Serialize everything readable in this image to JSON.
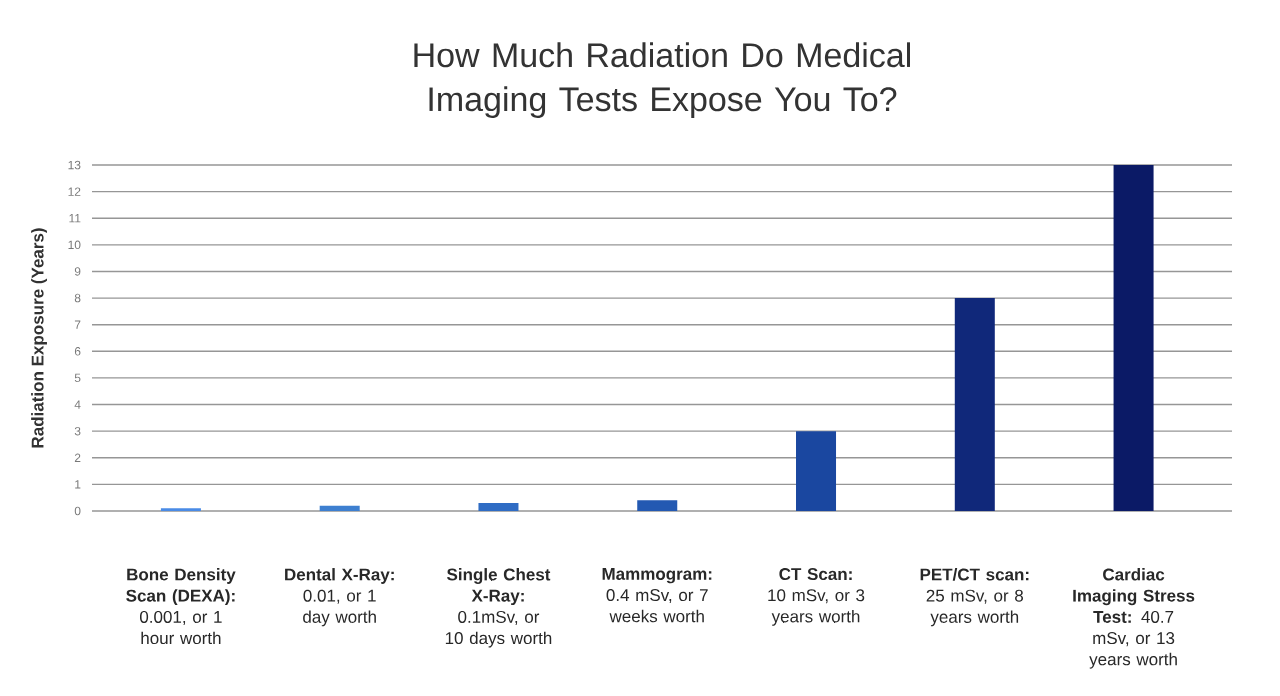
{
  "chart_data": {
    "type": "bar",
    "title": "How Much Radiation Do Medical Imaging Tests Expose You To?",
    "ylabel": "Radiation Exposure (Years)",
    "categories": [
      "**Bone Density Scan (DEXA):** 0.001, or 1 hour worth",
      "**Dental X-Ray:** 0.01, or 1 day worth",
      "**Single Chest X-Ray:** 0.1mSv, or 10 days worth",
      "**Mammogram:** 0.4 mSv, or 7 weeks worth",
      "**CT Scan:** 10 mSv, or 3 years worth",
      "**PET/CT scan:** 25 mSv, or 8 years worth",
      "**Cardiac Imaging Stress Test:** 40.7 mSv, or 13 years worth"
    ],
    "values": [
      0.1,
      0.2,
      0.3,
      0.4,
      3,
      8,
      13
    ],
    "colors": [
      "#4a8be6",
      "#3d7fd0",
      "#2f6cc4",
      "#2359b2",
      "#1a47a0",
      "#10287a",
      "#0b1a66"
    ],
    "ylim": [
      0,
      13
    ],
    "yticks": [
      0,
      1,
      2,
      3,
      4,
      5,
      6,
      7,
      8,
      9,
      10,
      11,
      12,
      13
    ],
    "grid": "y"
  }
}
